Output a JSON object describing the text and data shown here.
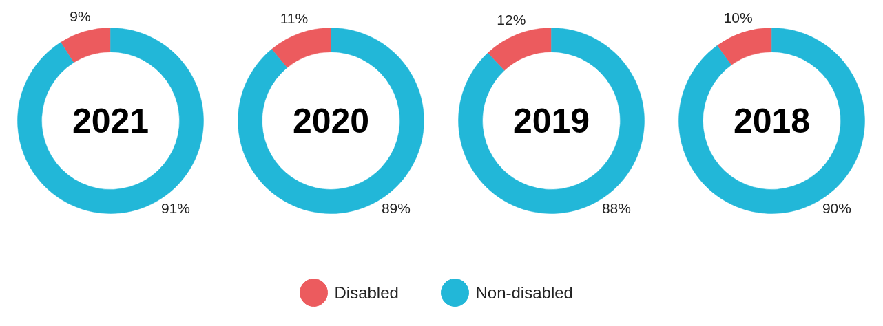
{
  "chart_data": [
    {
      "type": "donut",
      "title": "2021",
      "categories": [
        "Disabled",
        "Non-disabled"
      ],
      "values": [
        9,
        91
      ],
      "colors": [
        "#ec5b5e",
        "#22b7d8"
      ],
      "value_labels": [
        "9%",
        "91%"
      ],
      "legend": "bottom"
    },
    {
      "type": "donut",
      "title": "2020",
      "categories": [
        null,
        null
      ],
      "values": [
        11,
        89
      ],
      "colors": [
        "#ec5b5e",
        "#22b7d8"
      ],
      "value_labels": [
        "11%",
        "89%"
      ]
    },
    {
      "type": "donut",
      "title": "2019",
      "categories": [
        null,
        null
      ],
      "values": [
        12,
        88
      ],
      "colors": [
        "#ec5b5e",
        "#22b7d8"
      ],
      "value_labels": [
        "12%",
        "88%"
      ]
    },
    {
      "type": "donut",
      "title": "2018",
      "categories": [
        null,
        null
      ],
      "values": [
        10,
        90
      ],
      "colors": [
        "#ec5b5e",
        "#22b7d8"
      ],
      "value_labels": [
        "10%",
        "90%"
      ]
    }
  ]
}
